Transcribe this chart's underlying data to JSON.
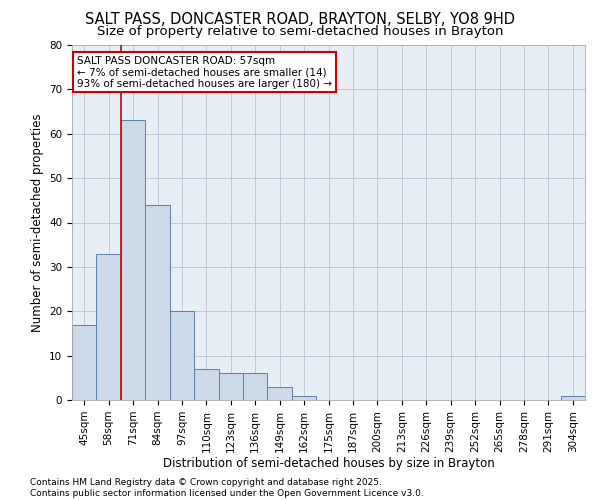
{
  "title_line1": "SALT PASS, DONCASTER ROAD, BRAYTON, SELBY, YO8 9HD",
  "title_line2": "Size of property relative to semi-detached houses in Brayton",
  "xlabel": "Distribution of semi-detached houses by size in Brayton",
  "ylabel": "Number of semi-detached properties",
  "categories": [
    "45sqm",
    "58sqm",
    "71sqm",
    "84sqm",
    "97sqm",
    "110sqm",
    "123sqm",
    "136sqm",
    "149sqm",
    "162sqm",
    "175sqm",
    "187sqm",
    "200sqm",
    "213sqm",
    "226sqm",
    "239sqm",
    "252sqm",
    "265sqm",
    "278sqm",
    "291sqm",
    "304sqm"
  ],
  "values": [
    17,
    33,
    63,
    44,
    20,
    7,
    6,
    6,
    3,
    1,
    0,
    0,
    0,
    0,
    0,
    0,
    0,
    0,
    0,
    0,
    1
  ],
  "bar_color": "#ccd9e8",
  "bar_edge_color": "#5b7fa6",
  "grid_color": "#c0c8d8",
  "background_color": "#e8eef5",
  "annotation_line1": "SALT PASS DONCASTER ROAD: 57sqm",
  "annotation_line2": "← 7% of semi-detached houses are smaller (14)",
  "annotation_line3": "93% of semi-detached houses are larger (180) →",
  "annotation_box_edge_color": "#cc0000",
  "vline_x": 1.5,
  "vline_color": "#cc0000",
  "ylim": [
    0,
    80
  ],
  "yticks": [
    0,
    10,
    20,
    30,
    40,
    50,
    60,
    70,
    80
  ],
  "footer_line1": "Contains HM Land Registry data © Crown copyright and database right 2025.",
  "footer_line2": "Contains public sector information licensed under the Open Government Licence v3.0.",
  "title_fontsize": 10.5,
  "subtitle_fontsize": 9.5,
  "axis_label_fontsize": 8.5,
  "tick_fontsize": 7.5,
  "annotation_fontsize": 7.5,
  "footer_fontsize": 6.5
}
